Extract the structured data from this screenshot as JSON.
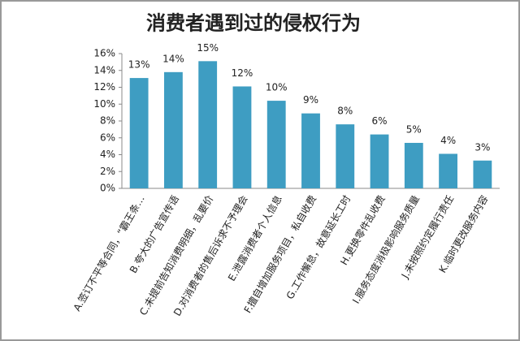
{
  "chart_data": {
    "type": "bar",
    "title": "消费者遇到过的侵权行为",
    "categories": [
      "A.签订不平等合同，“霸王条…",
      "B.夸大的广告宣传语",
      "C.未提前告知消费明细，乱要价",
      "D.对消费者的售后诉求不予理会",
      "E.泄露消费者个人信息",
      "F.擅自增加服务项目，私自收费",
      "G.工作懈怠，故意延长工时",
      "H.更换零件乱收费",
      "I.服务态度消极影响服务质量",
      "J.未按照约定履行责任",
      "K.临时更改服务内容"
    ],
    "values": [
      13.1,
      13.8,
      15.1,
      12.1,
      10.4,
      8.9,
      7.6,
      6.4,
      5.4,
      4.1,
      3.3
    ],
    "value_labels": [
      "13%",
      "14%",
      "15%",
      "12%",
      "10%",
      "9%",
      "8%",
      "6%",
      "5%",
      "4%",
      "3%"
    ],
    "color": "#3e9dc2",
    "ylim": [
      0,
      16
    ],
    "yticks": [
      {
        "value": 0,
        "label": "0%"
      },
      {
        "value": 2,
        "label": "2%"
      },
      {
        "value": 4,
        "label": "4%"
      },
      {
        "value": 6,
        "label": "6%"
      },
      {
        "value": 8,
        "label": "8%"
      },
      {
        "value": 10,
        "label": "10%"
      },
      {
        "value": 12,
        "label": "12%"
      },
      {
        "value": 14,
        "label": "14%"
      },
      {
        "value": 16,
        "label": "16%"
      }
    ],
    "grid": false
  }
}
